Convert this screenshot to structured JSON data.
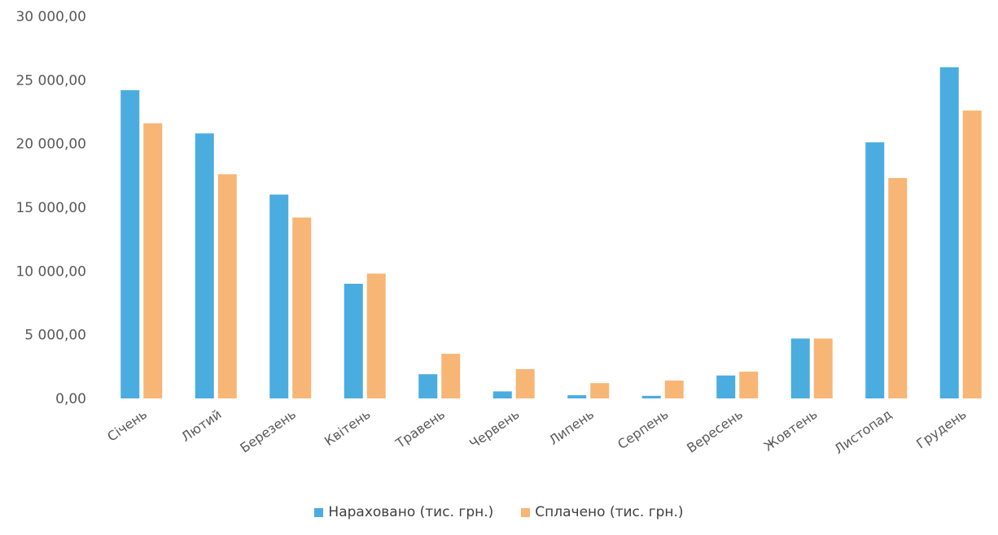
{
  "chart_data": {
    "type": "bar",
    "categories": [
      "Січень",
      "Лютий",
      "Березень",
      "Квітень",
      "Травень",
      "Червень",
      "Липень",
      "Серпень",
      "Вересень",
      "Жовтень",
      "Листопад",
      "Грудень"
    ],
    "series": [
      {
        "name": "Нараховано (тис. грн.)",
        "color": "#4BACE0",
        "values": [
          24200,
          20800,
          16000,
          9000,
          1900,
          550,
          250,
          200,
          1800,
          4700,
          20100,
          26000
        ]
      },
      {
        "name": "Сплачено (тис. грн.)",
        "color": "#F7B676",
        "values": [
          21600,
          17600,
          14200,
          9800,
          3500,
          2300,
          1200,
          1400,
          2100,
          4700,
          17300,
          22600
        ]
      }
    ],
    "yticks": [
      "0,00",
      "5 000,00",
      "10 000,00",
      "15 000,00",
      "20 000,00",
      "25 000,00",
      "30 000,00"
    ],
    "ylim": [
      0,
      30000
    ],
    "grid": false,
    "legend_position": "bottom"
  }
}
